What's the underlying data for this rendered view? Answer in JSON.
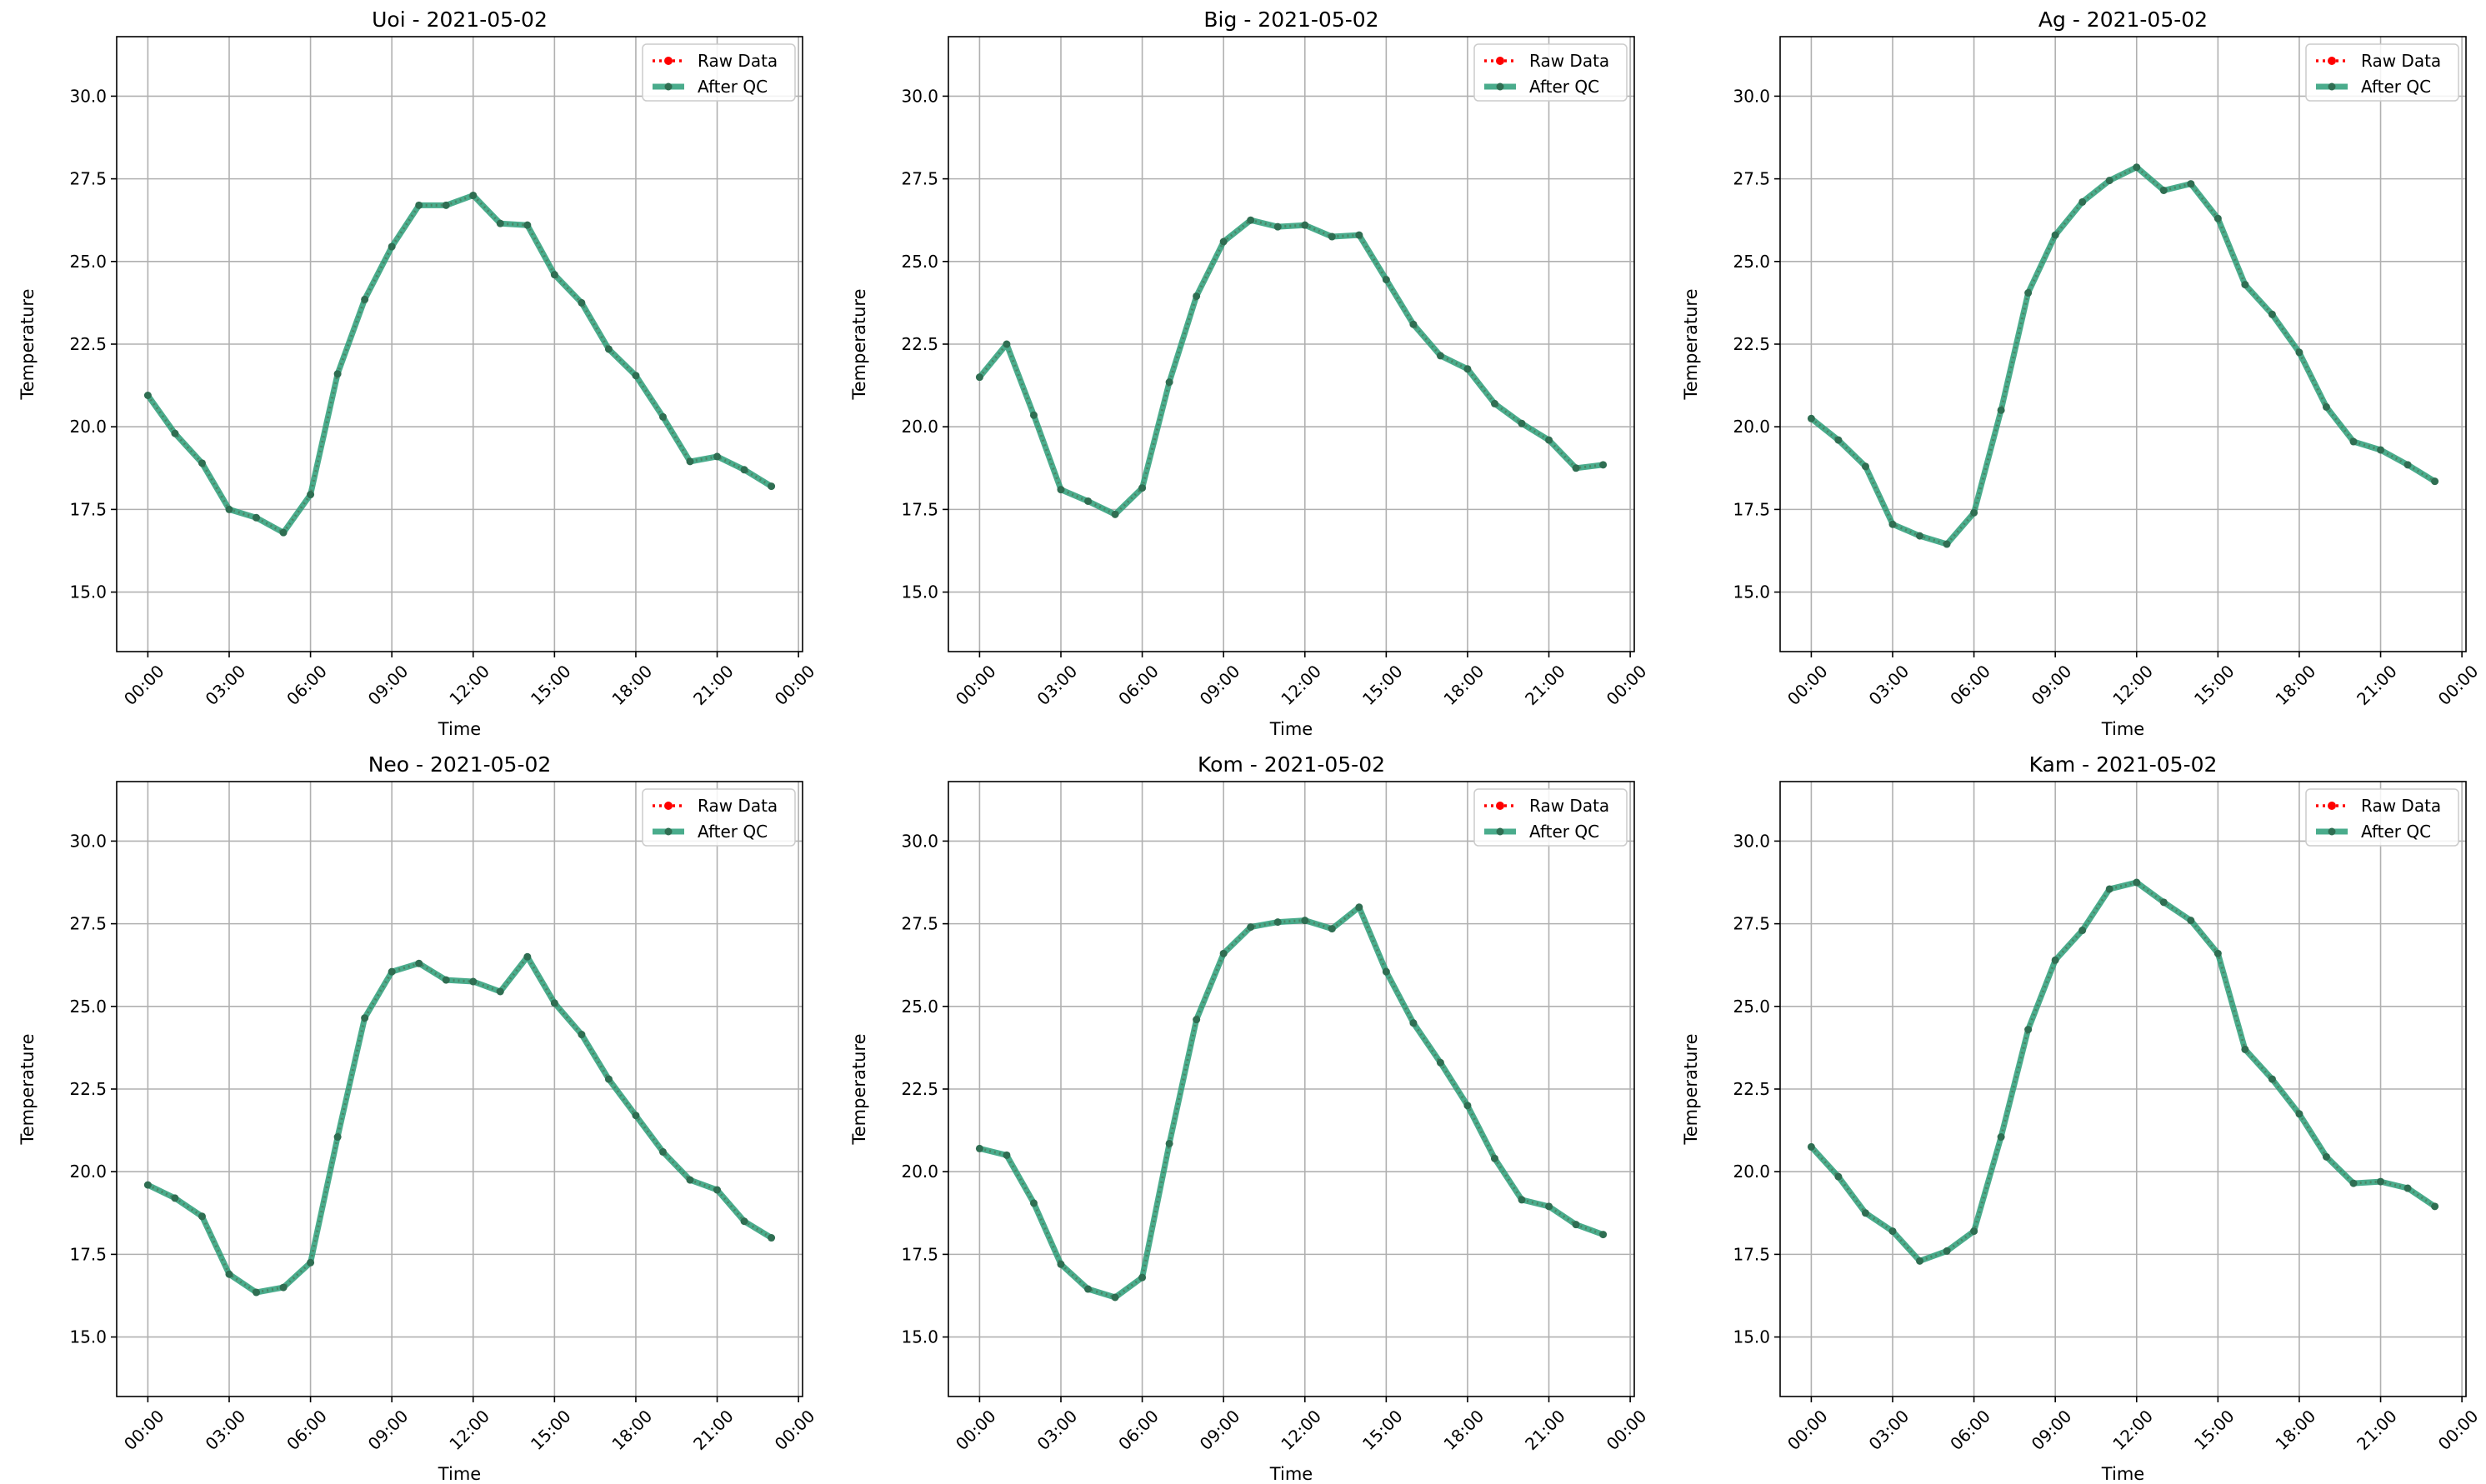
{
  "figure": {
    "background": "#ffffff",
    "raw_color": "#ff0000",
    "qc_color": "#2a9d78",
    "marker_color": "#2f6e52"
  },
  "chart_data": [
    {
      "type": "line",
      "title": "Uoi - 2021-05-02",
      "xlabel": "Time",
      "ylabel": "Temperature",
      "x_unit": "hour",
      "xlim": [
        -1.15,
        24.15
      ],
      "ylim": [
        13.2,
        31.8
      ],
      "xticks": [
        0,
        3,
        6,
        9,
        12,
        15,
        18,
        21,
        24
      ],
      "xtick_labels": [
        "00:00",
        "03:00",
        "06:00",
        "09:00",
        "12:00",
        "15:00",
        "18:00",
        "21:00",
        "00:00"
      ],
      "yticks": [
        15.0,
        17.5,
        20.0,
        22.5,
        25.0,
        27.5,
        30.0
      ],
      "ytick_labels": [
        "15.0",
        "17.5",
        "20.0",
        "22.5",
        "25.0",
        "27.5",
        "30.0"
      ],
      "grid": true,
      "legend": "upper right",
      "x": [
        0,
        1,
        2,
        3,
        4,
        5,
        6,
        7,
        8,
        9,
        10,
        11,
        12,
        13,
        14,
        15,
        16,
        17,
        18,
        19,
        20,
        21,
        22,
        23
      ],
      "series": [
        {
          "name": "Raw Data",
          "style": "dotted-marker",
          "values": [
            20.95,
            19.8,
            18.9,
            17.5,
            17.25,
            16.8,
            17.95,
            21.6,
            23.85,
            25.45,
            26.7,
            26.7,
            27.0,
            26.15,
            26.1,
            24.6,
            23.75,
            22.35,
            21.55,
            20.3,
            18.95,
            19.1,
            18.7,
            18.2
          ]
        },
        {
          "name": "After QC",
          "style": "solid-marker",
          "values": [
            20.95,
            19.8,
            18.9,
            17.5,
            17.25,
            16.8,
            17.95,
            21.6,
            23.85,
            25.45,
            26.7,
            26.7,
            27.0,
            26.15,
            26.1,
            24.6,
            23.75,
            22.35,
            21.55,
            20.3,
            18.95,
            19.1,
            18.7,
            18.2
          ]
        }
      ]
    },
    {
      "type": "line",
      "title": "Big - 2021-05-02",
      "xlabel": "Time",
      "ylabel": "Temperature",
      "x_unit": "hour",
      "xlim": [
        -1.15,
        24.15
      ],
      "ylim": [
        13.2,
        31.8
      ],
      "xticks": [
        0,
        3,
        6,
        9,
        12,
        15,
        18,
        21,
        24
      ],
      "xtick_labels": [
        "00:00",
        "03:00",
        "06:00",
        "09:00",
        "12:00",
        "15:00",
        "18:00",
        "21:00",
        "00:00"
      ],
      "yticks": [
        15.0,
        17.5,
        20.0,
        22.5,
        25.0,
        27.5,
        30.0
      ],
      "ytick_labels": [
        "15.0",
        "17.5",
        "20.0",
        "22.5",
        "25.0",
        "27.5",
        "30.0"
      ],
      "grid": true,
      "legend": "upper right",
      "x": [
        0,
        1,
        2,
        3,
        4,
        5,
        6,
        7,
        8,
        9,
        10,
        11,
        12,
        13,
        14,
        15,
        16,
        17,
        18,
        19,
        20,
        21,
        22,
        23
      ],
      "series": [
        {
          "name": "Raw Data",
          "style": "dotted-marker",
          "values": [
            21.5,
            22.5,
            20.35,
            18.1,
            17.75,
            17.35,
            18.15,
            21.35,
            23.95,
            25.6,
            26.25,
            26.05,
            26.1,
            25.75,
            25.8,
            24.45,
            23.1,
            22.15,
            21.75,
            20.7,
            20.1,
            19.6,
            18.75,
            18.85
          ]
        },
        {
          "name": "After QC",
          "style": "solid-marker",
          "values": [
            21.5,
            22.5,
            20.35,
            18.1,
            17.75,
            17.35,
            18.15,
            21.35,
            23.95,
            25.6,
            26.25,
            26.05,
            26.1,
            25.75,
            25.8,
            24.45,
            23.1,
            22.15,
            21.75,
            20.7,
            20.1,
            19.6,
            18.75,
            18.85
          ]
        }
      ]
    },
    {
      "type": "line",
      "title": "Ag - 2021-05-02",
      "xlabel": "Time",
      "ylabel": "Temperature",
      "x_unit": "hour",
      "xlim": [
        -1.15,
        24.15
      ],
      "ylim": [
        13.2,
        31.8
      ],
      "xticks": [
        0,
        3,
        6,
        9,
        12,
        15,
        18,
        21,
        24
      ],
      "xtick_labels": [
        "00:00",
        "03:00",
        "06:00",
        "09:00",
        "12:00",
        "15:00",
        "18:00",
        "21:00",
        "00:00"
      ],
      "yticks": [
        15.0,
        17.5,
        20.0,
        22.5,
        25.0,
        27.5,
        30.0
      ],
      "ytick_labels": [
        "15.0",
        "17.5",
        "20.0",
        "22.5",
        "25.0",
        "27.5",
        "30.0"
      ],
      "grid": true,
      "legend": "upper right",
      "x": [
        0,
        1,
        2,
        3,
        4,
        5,
        6,
        7,
        8,
        9,
        10,
        11,
        12,
        13,
        14,
        15,
        16,
        17,
        18,
        19,
        20,
        21,
        22,
        23
      ],
      "series": [
        {
          "name": "Raw Data",
          "style": "dotted-marker",
          "values": [
            20.25,
            19.6,
            18.8,
            17.05,
            16.7,
            16.45,
            17.4,
            20.5,
            24.05,
            25.8,
            26.8,
            27.45,
            27.85,
            27.15,
            27.35,
            26.3,
            24.3,
            23.4,
            22.25,
            20.6,
            19.55,
            19.3,
            18.85,
            18.35
          ]
        },
        {
          "name": "After QC",
          "style": "solid-marker",
          "values": [
            20.25,
            19.6,
            18.8,
            17.05,
            16.7,
            16.45,
            17.4,
            20.5,
            24.05,
            25.8,
            26.8,
            27.45,
            27.85,
            27.15,
            27.35,
            26.3,
            24.3,
            23.4,
            22.25,
            20.6,
            19.55,
            19.3,
            18.85,
            18.35
          ]
        }
      ]
    },
    {
      "type": "line",
      "title": "Neo - 2021-05-02",
      "xlabel": "Time",
      "ylabel": "Temperature",
      "x_unit": "hour",
      "xlim": [
        -1.15,
        24.15
      ],
      "ylim": [
        13.2,
        31.8
      ],
      "xticks": [
        0,
        3,
        6,
        9,
        12,
        15,
        18,
        21,
        24
      ],
      "xtick_labels": [
        "00:00",
        "03:00",
        "06:00",
        "09:00",
        "12:00",
        "15:00",
        "18:00",
        "21:00",
        "00:00"
      ],
      "yticks": [
        15.0,
        17.5,
        20.0,
        22.5,
        25.0,
        27.5,
        30.0
      ],
      "ytick_labels": [
        "15.0",
        "17.5",
        "20.0",
        "22.5",
        "25.0",
        "27.5",
        "30.0"
      ],
      "grid": true,
      "legend": "upper right",
      "x": [
        0,
        1,
        2,
        3,
        4,
        5,
        6,
        7,
        8,
        9,
        10,
        11,
        12,
        13,
        14,
        15,
        16,
        17,
        18,
        19,
        20,
        21,
        22,
        23
      ],
      "series": [
        {
          "name": "Raw Data",
          "style": "dotted-marker",
          "values": [
            19.6,
            19.2,
            18.65,
            16.9,
            16.35,
            16.5,
            17.25,
            21.05,
            24.65,
            26.05,
            26.3,
            25.8,
            25.75,
            25.45,
            26.5,
            25.1,
            24.15,
            22.8,
            21.7,
            20.6,
            19.75,
            19.45,
            18.5,
            18.0
          ]
        },
        {
          "name": "After QC",
          "style": "solid-marker",
          "values": [
            19.6,
            19.2,
            18.65,
            16.9,
            16.35,
            16.5,
            17.25,
            21.05,
            24.65,
            26.05,
            26.3,
            25.8,
            25.75,
            25.45,
            26.5,
            25.1,
            24.15,
            22.8,
            21.7,
            20.6,
            19.75,
            19.45,
            18.5,
            18.0
          ]
        }
      ]
    },
    {
      "type": "line",
      "title": "Kom - 2021-05-02",
      "xlabel": "Time",
      "ylabel": "Temperature",
      "x_unit": "hour",
      "xlim": [
        -1.15,
        24.15
      ],
      "ylim": [
        13.2,
        31.8
      ],
      "xticks": [
        0,
        3,
        6,
        9,
        12,
        15,
        18,
        21,
        24
      ],
      "xtick_labels": [
        "00:00",
        "03:00",
        "06:00",
        "09:00",
        "12:00",
        "15:00",
        "18:00",
        "21:00",
        "00:00"
      ],
      "yticks": [
        15.0,
        17.5,
        20.0,
        22.5,
        25.0,
        27.5,
        30.0
      ],
      "ytick_labels": [
        "15.0",
        "17.5",
        "20.0",
        "22.5",
        "25.0",
        "27.5",
        "30.0"
      ],
      "grid": true,
      "legend": "upper right",
      "x": [
        0,
        1,
        2,
        3,
        4,
        5,
        6,
        7,
        8,
        9,
        10,
        11,
        12,
        13,
        14,
        15,
        16,
        17,
        18,
        19,
        20,
        21,
        22,
        23
      ],
      "series": [
        {
          "name": "Raw Data",
          "style": "dotted-marker",
          "values": [
            20.7,
            20.5,
            19.05,
            17.2,
            16.45,
            16.2,
            16.8,
            20.85,
            24.6,
            26.6,
            27.4,
            27.55,
            27.6,
            27.35,
            28.0,
            26.05,
            24.5,
            23.3,
            22.0,
            20.4,
            19.15,
            18.95,
            18.4,
            18.1
          ]
        },
        {
          "name": "After QC",
          "style": "solid-marker",
          "values": [
            20.7,
            20.5,
            19.05,
            17.2,
            16.45,
            16.2,
            16.8,
            20.85,
            24.6,
            26.6,
            27.4,
            27.55,
            27.6,
            27.35,
            28.0,
            26.05,
            24.5,
            23.3,
            22.0,
            20.4,
            19.15,
            18.95,
            18.4,
            18.1
          ]
        }
      ]
    },
    {
      "type": "line",
      "title": "Kam - 2021-05-02",
      "xlabel": "Time",
      "ylabel": "Temperature",
      "x_unit": "hour",
      "xlim": [
        -1.15,
        24.15
      ],
      "ylim": [
        13.2,
        31.8
      ],
      "xticks": [
        0,
        3,
        6,
        9,
        12,
        15,
        18,
        21,
        24
      ],
      "xtick_labels": [
        "00:00",
        "03:00",
        "06:00",
        "09:00",
        "12:00",
        "15:00",
        "18:00",
        "21:00",
        "00:00"
      ],
      "yticks": [
        15.0,
        17.5,
        20.0,
        22.5,
        25.0,
        27.5,
        30.0
      ],
      "ytick_labels": [
        "15.0",
        "17.5",
        "20.0",
        "22.5",
        "25.0",
        "27.5",
        "30.0"
      ],
      "grid": true,
      "legend": "upper right",
      "x": [
        0,
        1,
        2,
        3,
        4,
        5,
        6,
        7,
        8,
        9,
        10,
        11,
        12,
        13,
        14,
        15,
        16,
        17,
        18,
        19,
        20,
        21,
        22,
        23
      ],
      "series": [
        {
          "name": "Raw Data",
          "style": "dotted-marker",
          "values": [
            20.75,
            19.85,
            18.75,
            18.2,
            17.3,
            17.6,
            18.2,
            21.05,
            24.3,
            26.4,
            27.3,
            28.55,
            28.75,
            28.15,
            27.6,
            26.6,
            23.7,
            22.8,
            21.75,
            20.45,
            19.65,
            19.7,
            19.5,
            18.95
          ]
        },
        {
          "name": "After QC",
          "style": "solid-marker",
          "values": [
            20.75,
            19.85,
            18.75,
            18.2,
            17.3,
            17.6,
            18.2,
            21.05,
            24.3,
            26.4,
            27.3,
            28.55,
            28.75,
            28.15,
            27.6,
            26.6,
            23.7,
            22.8,
            21.75,
            20.45,
            19.65,
            19.7,
            19.5,
            18.95
          ]
        }
      ]
    }
  ]
}
